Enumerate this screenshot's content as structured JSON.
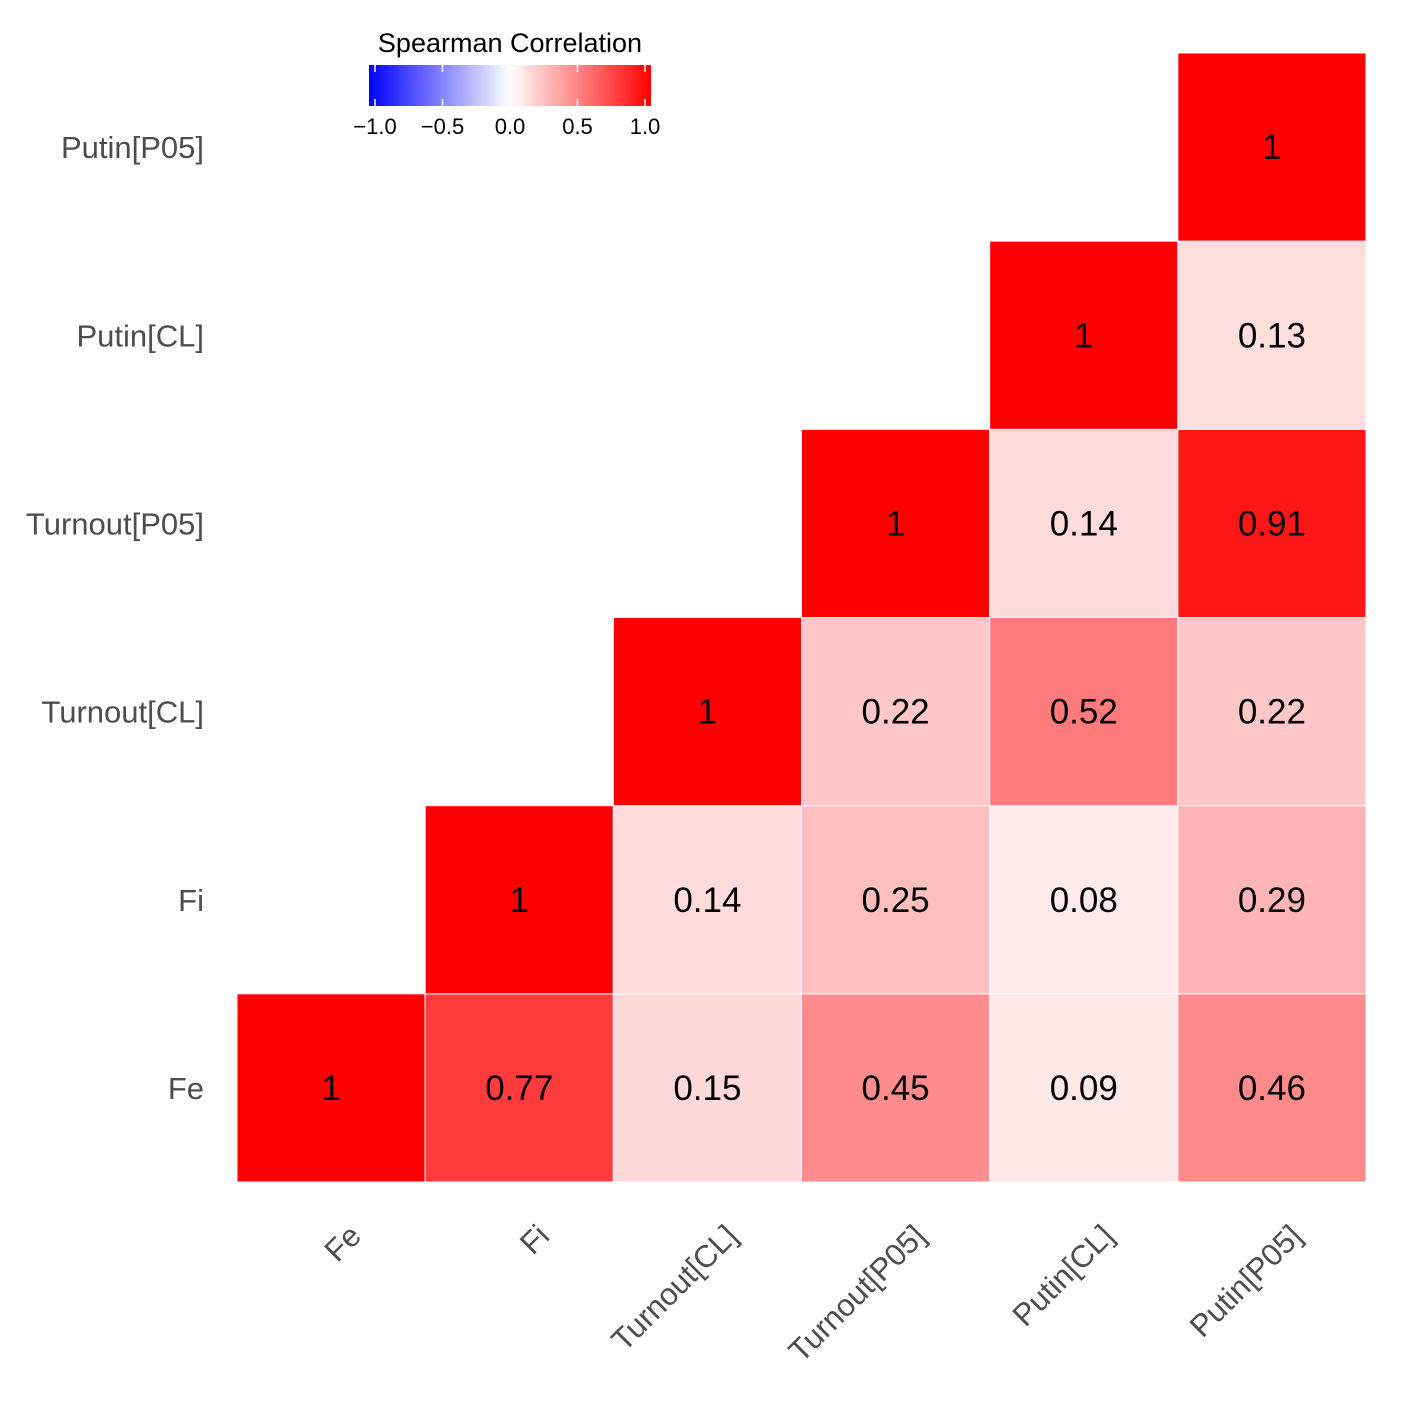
{
  "chart_data": {
    "type": "heatmap",
    "title": "",
    "xlabel": "",
    "ylabel": "",
    "x_categories": [
      "Fe",
      "Fi",
      "Turnout[CL]",
      "Turnout[P05]",
      "Putin[CL]",
      "Putin[P05]"
    ],
    "y_categories": [
      "Fe",
      "Fi",
      "Turnout[CL]",
      "Turnout[P05]",
      "Putin[CL]",
      "Putin[P05]"
    ],
    "cells": [
      {
        "x": "Fe",
        "y": "Fe",
        "value": 1,
        "label": "1"
      },
      {
        "x": "Fi",
        "y": "Fe",
        "value": 0.77,
        "label": "0.77"
      },
      {
        "x": "Turnout[CL]",
        "y": "Fe",
        "value": 0.15,
        "label": "0.15"
      },
      {
        "x": "Turnout[P05]",
        "y": "Fe",
        "value": 0.45,
        "label": "0.45"
      },
      {
        "x": "Putin[CL]",
        "y": "Fe",
        "value": 0.09,
        "label": "0.09"
      },
      {
        "x": "Putin[P05]",
        "y": "Fe",
        "value": 0.46,
        "label": "0.46"
      },
      {
        "x": "Fi",
        "y": "Fi",
        "value": 1,
        "label": "1"
      },
      {
        "x": "Turnout[CL]",
        "y": "Fi",
        "value": 0.14,
        "label": "0.14"
      },
      {
        "x": "Turnout[P05]",
        "y": "Fi",
        "value": 0.25,
        "label": "0.25"
      },
      {
        "x": "Putin[CL]",
        "y": "Fi",
        "value": 0.08,
        "label": "0.08"
      },
      {
        "x": "Putin[P05]",
        "y": "Fi",
        "value": 0.29,
        "label": "0.29"
      },
      {
        "x": "Turnout[CL]",
        "y": "Turnout[CL]",
        "value": 1,
        "label": "1"
      },
      {
        "x": "Turnout[P05]",
        "y": "Turnout[CL]",
        "value": 0.22,
        "label": "0.22"
      },
      {
        "x": "Putin[CL]",
        "y": "Turnout[CL]",
        "value": 0.52,
        "label": "0.52"
      },
      {
        "x": "Putin[P05]",
        "y": "Turnout[CL]",
        "value": 0.22,
        "label": "0.22"
      },
      {
        "x": "Turnout[P05]",
        "y": "Turnout[P05]",
        "value": 1,
        "label": "1"
      },
      {
        "x": "Putin[CL]",
        "y": "Turnout[P05]",
        "value": 0.14,
        "label": "0.14"
      },
      {
        "x": "Putin[P05]",
        "y": "Turnout[P05]",
        "value": 0.91,
        "label": "0.91"
      },
      {
        "x": "Putin[CL]",
        "y": "Putin[CL]",
        "value": 1,
        "label": "1"
      },
      {
        "x": "Putin[P05]",
        "y": "Putin[CL]",
        "value": 0.13,
        "label": "0.13"
      },
      {
        "x": "Putin[P05]",
        "y": "Putin[P05]",
        "value": 1,
        "label": "1"
      }
    ],
    "legend": {
      "title": "Spearman Correlation",
      "position": "top",
      "range": [
        -1,
        1
      ],
      "ticks": [
        -1.0,
        -0.5,
        0.0,
        0.5,
        1.0
      ],
      "tick_labels": [
        "−1.0",
        "−0.5",
        "0.0",
        "0.5",
        "1.0"
      ],
      "low_color": "#0000ff",
      "mid_color": "#ffffff",
      "high_color": "#ff0000"
    },
    "grid": false
  }
}
